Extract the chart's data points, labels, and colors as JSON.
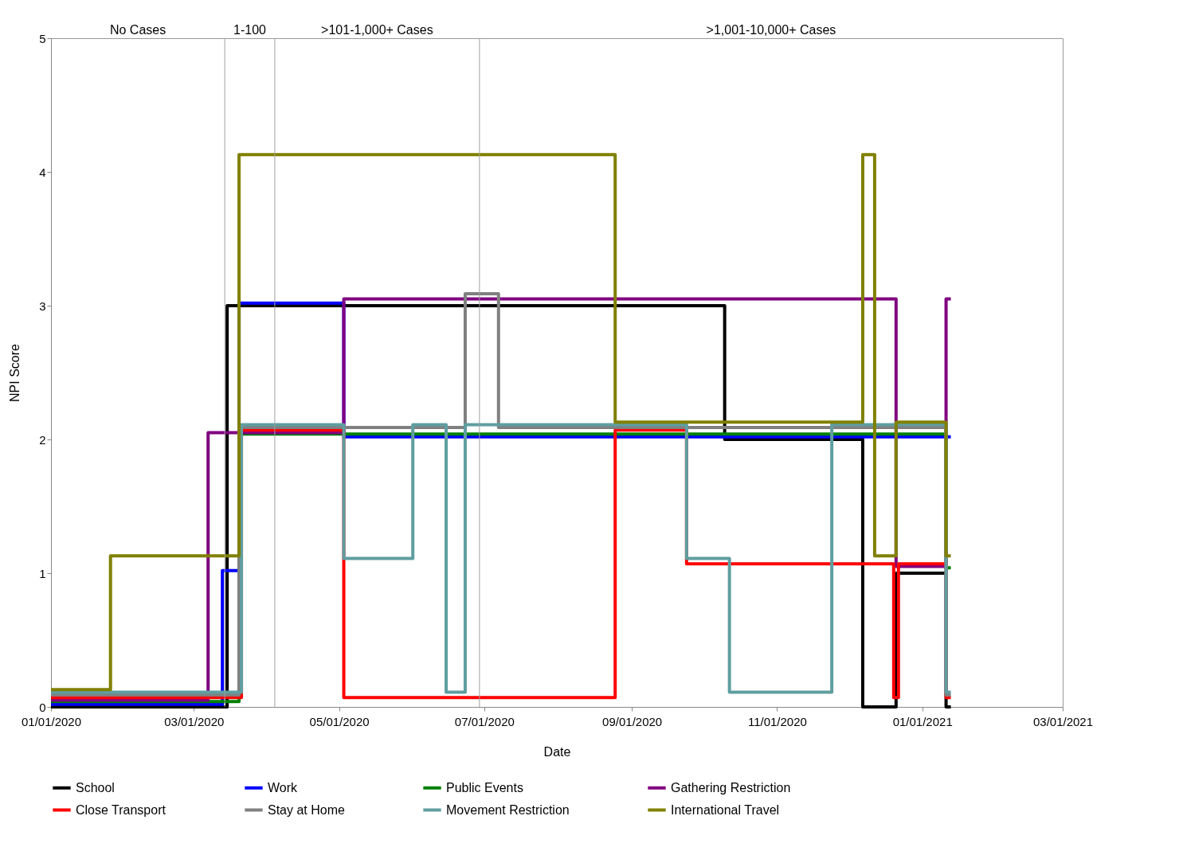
{
  "chart_data": {
    "type": "step",
    "xlabel": "Date",
    "ylabel": "NPI Score",
    "xlim": [
      "2020-01-01",
      "2021-03-01"
    ],
    "xticks": [
      {
        "value": "2020-01-01",
        "label": "01/01/2020"
      },
      {
        "value": "2020-03-01",
        "label": "03/01/2020"
      },
      {
        "value": "2020-05-01",
        "label": "05/01/2020"
      },
      {
        "value": "2020-07-01",
        "label": "07/01/2020"
      },
      {
        "value": "2020-09-01",
        "label": "09/01/2020"
      },
      {
        "value": "2020-11-01",
        "label": "11/01/2020"
      },
      {
        "value": "2021-01-01",
        "label": "01/01/2021"
      },
      {
        "value": "2021-03-01",
        "label": "03/01/2021"
      }
    ],
    "ylim": [
      0,
      5
    ],
    "yticks": [
      0,
      1,
      2,
      3,
      4,
      5
    ],
    "grid": false,
    "legend": "bottom",
    "marker": "none",
    "line_style": "solid",
    "ref_lines": [
      {
        "axis": "x",
        "value": "2020-03-14",
        "color": "#a0a0a0"
      },
      {
        "axis": "x",
        "value": "2020-04-04",
        "color": "#a0a0a0"
      },
      {
        "axis": "x",
        "value": "2020-06-29",
        "color": "#a0a0a0"
      }
    ],
    "annotations": [
      "No Cases",
      "1-100",
      ">101-1,000+ Cases",
      ">1,001-10,000+ Cases"
    ],
    "series": [
      {
        "name": "School",
        "color": "#000000",
        "x": [
          "2020-01-01",
          "2020-03-15",
          "2020-10-10",
          "2020-12-07",
          "2020-12-21",
          "2021-01-11",
          "2021-01-13"
        ],
        "values": [
          0,
          3,
          2,
          0,
          1,
          0,
          0
        ]
      },
      {
        "name": "Work",
        "color": "#0000ff",
        "x": [
          "2020-01-01",
          "2020-03-13",
          "2020-03-20",
          "2020-05-03",
          "2021-01-13"
        ],
        "values": [
          0.02,
          1.02,
          3.02,
          2.02,
          2.02
        ]
      },
      {
        "name": "Public Events",
        "color": "#008000",
        "x": [
          "2020-01-01",
          "2020-03-20",
          "2021-01-11",
          "2021-01-13"
        ],
        "values": [
          0.04,
          2.04,
          1.04,
          1.04
        ]
      },
      {
        "name": "Gathering Restriction",
        "color": "#800080",
        "x": [
          "2020-01-01",
          "2020-03-07",
          "2020-05-03",
          "2020-12-21",
          "2021-01-11",
          "2021-01-13"
        ],
        "values": [
          0.05,
          2.05,
          3.05,
          1.05,
          3.05,
          3.05
        ]
      },
      {
        "name": "Close Transport",
        "color": "#ff0000",
        "x": [
          "2020-01-01",
          "2020-03-21",
          "2020-05-03",
          "2020-08-25",
          "2020-09-24",
          "2020-12-20",
          "2020-12-22",
          "2021-01-11",
          "2021-01-13"
        ],
        "values": [
          0.07,
          2.07,
          0.07,
          2.07,
          1.07,
          0.07,
          1.07,
          0.07,
          0.07
        ]
      },
      {
        "name": "Stay at Home",
        "color": "#808080",
        "x": [
          "2020-01-01",
          "2020-03-20",
          "2020-06-23",
          "2020-07-07",
          "2021-01-11",
          "2021-01-13"
        ],
        "values": [
          0.09,
          2.09,
          3.09,
          2.09,
          0.09,
          0.09
        ]
      },
      {
        "name": "Movement Restriction",
        "color": "#5f9ea0",
        "x": [
          "2020-01-01",
          "2020-03-21",
          "2020-05-03",
          "2020-06-01",
          "2020-06-15",
          "2020-06-23",
          "2020-09-24",
          "2020-10-12",
          "2020-11-24",
          "2021-01-11",
          "2021-01-13"
        ],
        "values": [
          0.11,
          2.11,
          1.11,
          2.11,
          0.11,
          2.11,
          1.11,
          0.11,
          2.11,
          0.11,
          0.11
        ]
      },
      {
        "name": "International Travel",
        "color": "#808000",
        "x": [
          "2020-01-01",
          "2020-01-26",
          "2020-03-20",
          "2020-08-25",
          "2020-12-07",
          "2020-12-12",
          "2020-12-21",
          "2021-01-11",
          "2021-01-13"
        ],
        "values": [
          0.13,
          1.13,
          4.13,
          2.13,
          4.13,
          1.13,
          2.13,
          1.13,
          1.13
        ]
      }
    ]
  }
}
